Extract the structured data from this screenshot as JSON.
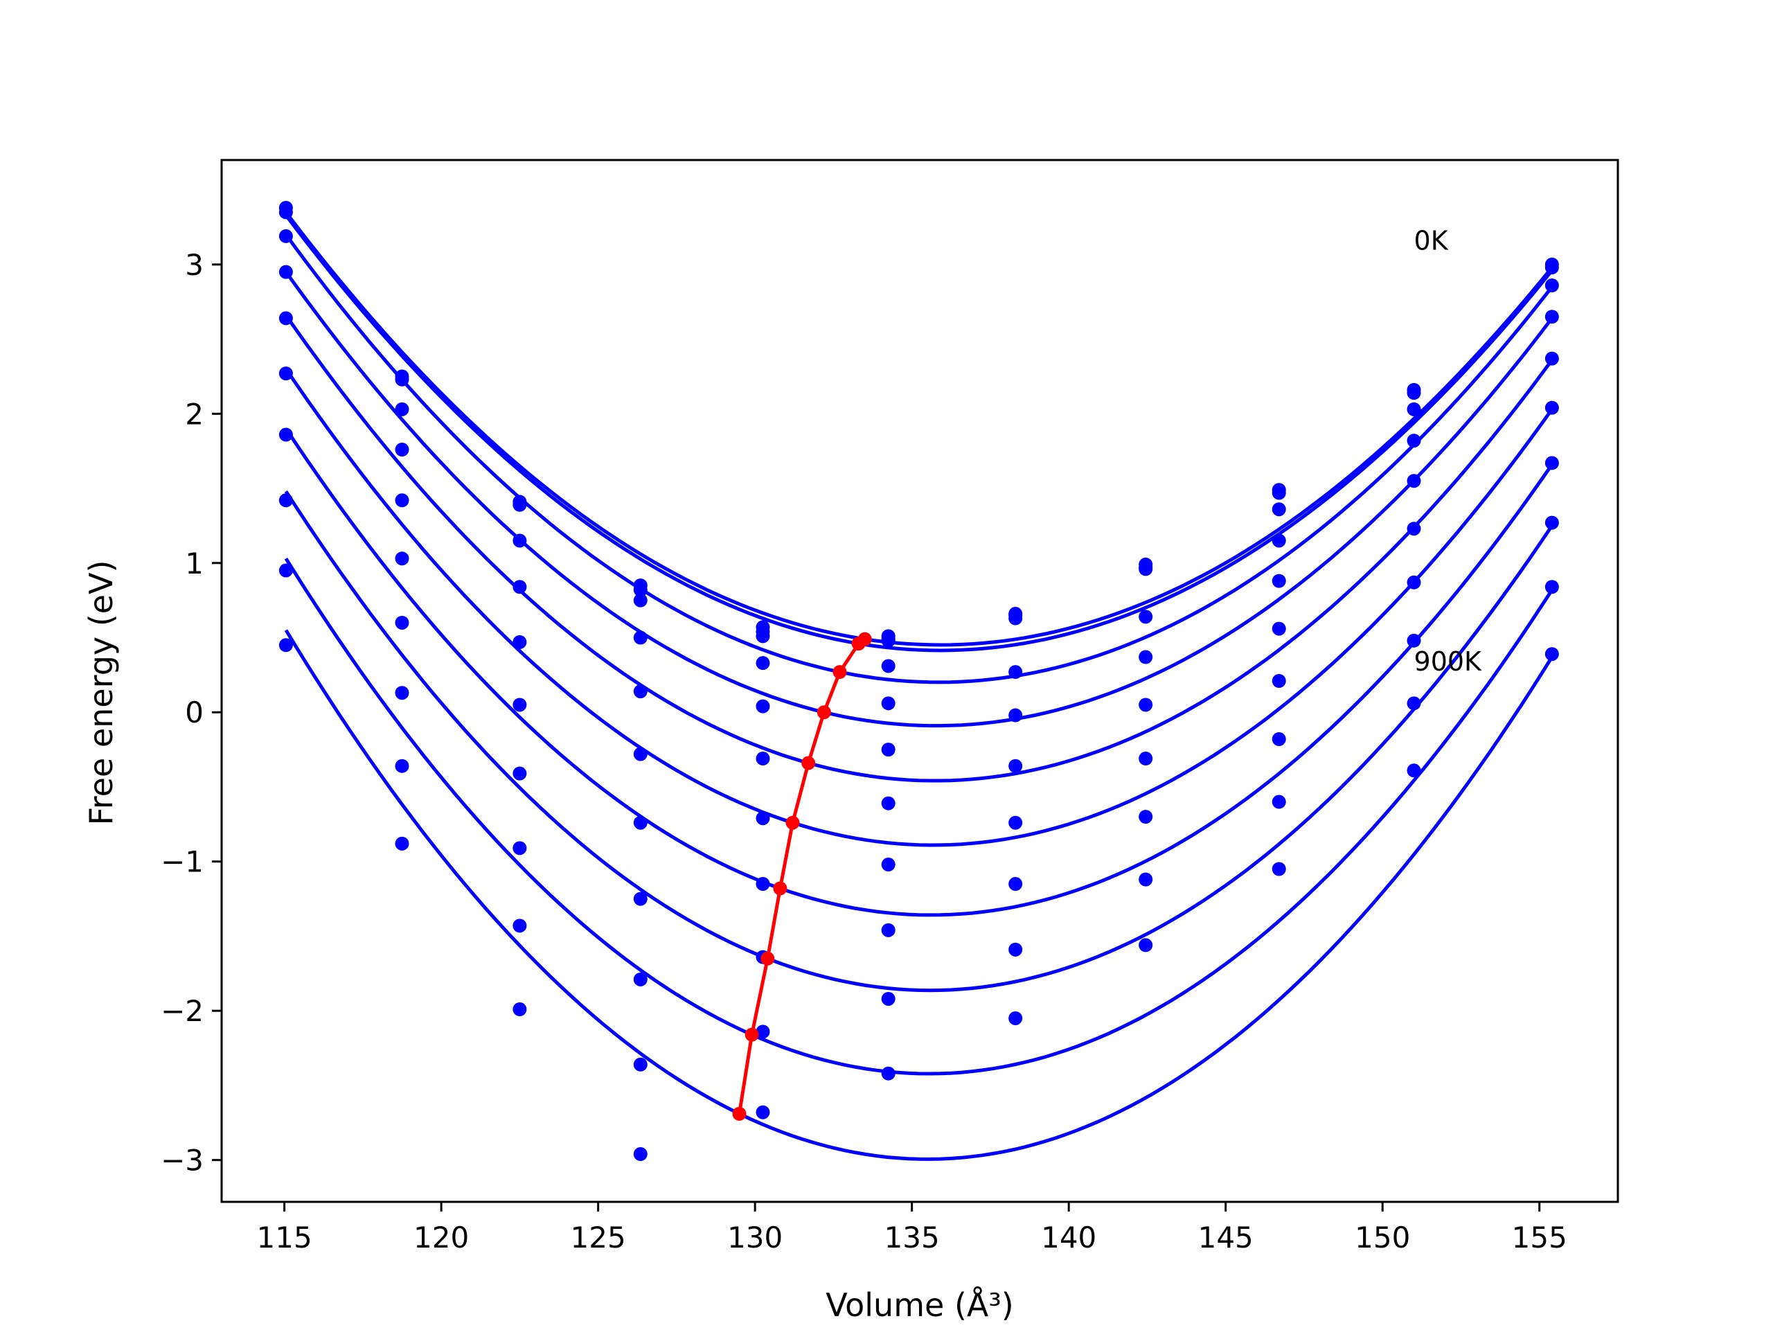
{
  "chart_data": {
    "type": "scatter",
    "title": "",
    "xlabel": "Volume (Å³)",
    "ylabel": "Free energy (eV)",
    "xlim": [
      113,
      157.5
    ],
    "ylim": [
      -3.28,
      3.7
    ],
    "xticks": [
      115,
      120,
      125,
      130,
      135,
      140,
      145,
      150,
      155
    ],
    "yticks": [
      -3,
      -2,
      -1,
      0,
      1,
      2,
      3
    ],
    "xtick_labels": [
      "115",
      "120",
      "125",
      "130",
      "135",
      "140",
      "145",
      "150",
      "155"
    ],
    "ytick_labels": [
      "−3",
      "−2",
      "−1",
      "0",
      "1",
      "2",
      "3"
    ],
    "grid": false,
    "annotations": [
      {
        "text": "0K",
        "x": 151.0,
        "y": 3.1
      },
      {
        "text": "900K",
        "x": 151.0,
        "y": 0.28
      }
    ],
    "volumes": [
      115.05,
      118.75,
      122.5,
      126.35,
      130.25,
      134.25,
      138.3,
      142.45,
      146.7,
      151.0,
      155.4
    ],
    "series": [
      {
        "energies": [
          3.38,
          2.25,
          1.41,
          0.85,
          0.57,
          0.51,
          0.65,
          0.99,
          1.49,
          2.16,
          3.0
        ],
        "fit_x": [
          115.05,
          133.5,
          155.4
        ],
        "fit_y": [
          3.35,
          0.49,
          2.98
        ]
      },
      {
        "energies": [
          3.35,
          2.23,
          1.39,
          0.82,
          0.54,
          0.49,
          0.63,
          0.97,
          1.47,
          2.14,
          2.98
        ],
        "fit_x": [
          115.05,
          133.3,
          155.4
        ],
        "fit_y": [
          3.33,
          0.46,
          2.96
        ]
      },
      {
        "energies": [
          3.19,
          2.03,
          1.15,
          0.75,
          0.51,
          0.48,
          0.66,
          0.96,
          1.36,
          2.03,
          2.86
        ],
        "fit_x": [
          115.05,
          132.7,
          155.4
        ],
        "fit_y": [
          3.2,
          0.27,
          2.85
        ]
      },
      {
        "energies": [
          2.95,
          1.76,
          0.84,
          0.5,
          0.33,
          0.31,
          0.27,
          0.64,
          1.15,
          1.82,
          2.65
        ],
        "fit_x": [
          115.05,
          132.2,
          155.4
        ],
        "fit_y": [
          2.95,
          0.0,
          2.64
        ]
      },
      {
        "energies": [
          2.64,
          1.42,
          0.47,
          0.14,
          0.04,
          0.06,
          -0.02,
          0.37,
          0.88,
          1.55,
          2.37
        ],
        "fit_x": [
          115.05,
          131.7,
          155.4
        ],
        "fit_y": [
          2.66,
          -0.34,
          2.36
        ]
      },
      {
        "energies": [
          2.27,
          1.03,
          0.05,
          -0.28,
          -0.31,
          -0.25,
          -0.36,
          0.05,
          0.56,
          1.23,
          2.04
        ],
        "fit_x": [
          115.05,
          131.2,
          155.4
        ],
        "fit_y": [
          2.3,
          -0.74,
          2.03
        ]
      },
      {
        "energies": [
          1.86,
          0.6,
          -0.41,
          -0.74,
          -0.71,
          -0.61,
          -0.74,
          -0.31,
          0.21,
          0.87,
          1.67
        ],
        "fit_x": [
          115.05,
          130.8,
          155.4
        ],
        "fit_y": [
          1.9,
          -1.18,
          1.66
        ]
      },
      {
        "energies": [
          1.42,
          0.13,
          -0.91,
          -1.25,
          -1.15,
          -1.02,
          -1.15,
          -0.7,
          -0.18,
          0.48,
          1.27
        ],
        "fit_x": [
          115.05,
          130.4,
          155.4
        ],
        "fit_y": [
          1.48,
          -1.65,
          1.25
        ]
      },
      {
        "energies": [
          0.95,
          -0.36,
          -1.43,
          -1.79,
          -1.64,
          -1.46,
          -1.59,
          -1.12,
          -0.6,
          0.06,
          0.84
        ],
        "fit_x": [
          115.05,
          129.9,
          155.4
        ],
        "fit_y": [
          1.03,
          -2.16,
          0.82
        ]
      },
      {
        "energies": [
          0.45,
          -0.88,
          -1.99,
          -2.36,
          -2.14,
          -1.92,
          -2.05,
          -1.56,
          -1.05,
          -0.39,
          0.39
        ],
        "fit_x": [
          115.05,
          129.5,
          155.4
        ],
        "fit_y": [
          0.55,
          -2.69,
          0.37
        ]
      },
      {
        "energies": [
          null,
          null,
          null,
          -2.96,
          -2.68,
          -2.42,
          null,
          null,
          null,
          null,
          null
        ],
        "fit_x": [],
        "fit_y": []
      }
    ],
    "minima": {
      "x": [
        133.5,
        133.3,
        132.7,
        132.2,
        131.7,
        131.2,
        130.8,
        130.4,
        129.9,
        129.5
      ],
      "y": [
        0.49,
        0.46,
        0.27,
        0.0,
        -0.34,
        -0.74,
        -1.18,
        -1.65,
        -2.16,
        -2.69
      ]
    },
    "colors": {
      "fits": "#0000ff",
      "points": "#0000ff",
      "minima": "#ff0000",
      "axes": "#000000"
    }
  }
}
